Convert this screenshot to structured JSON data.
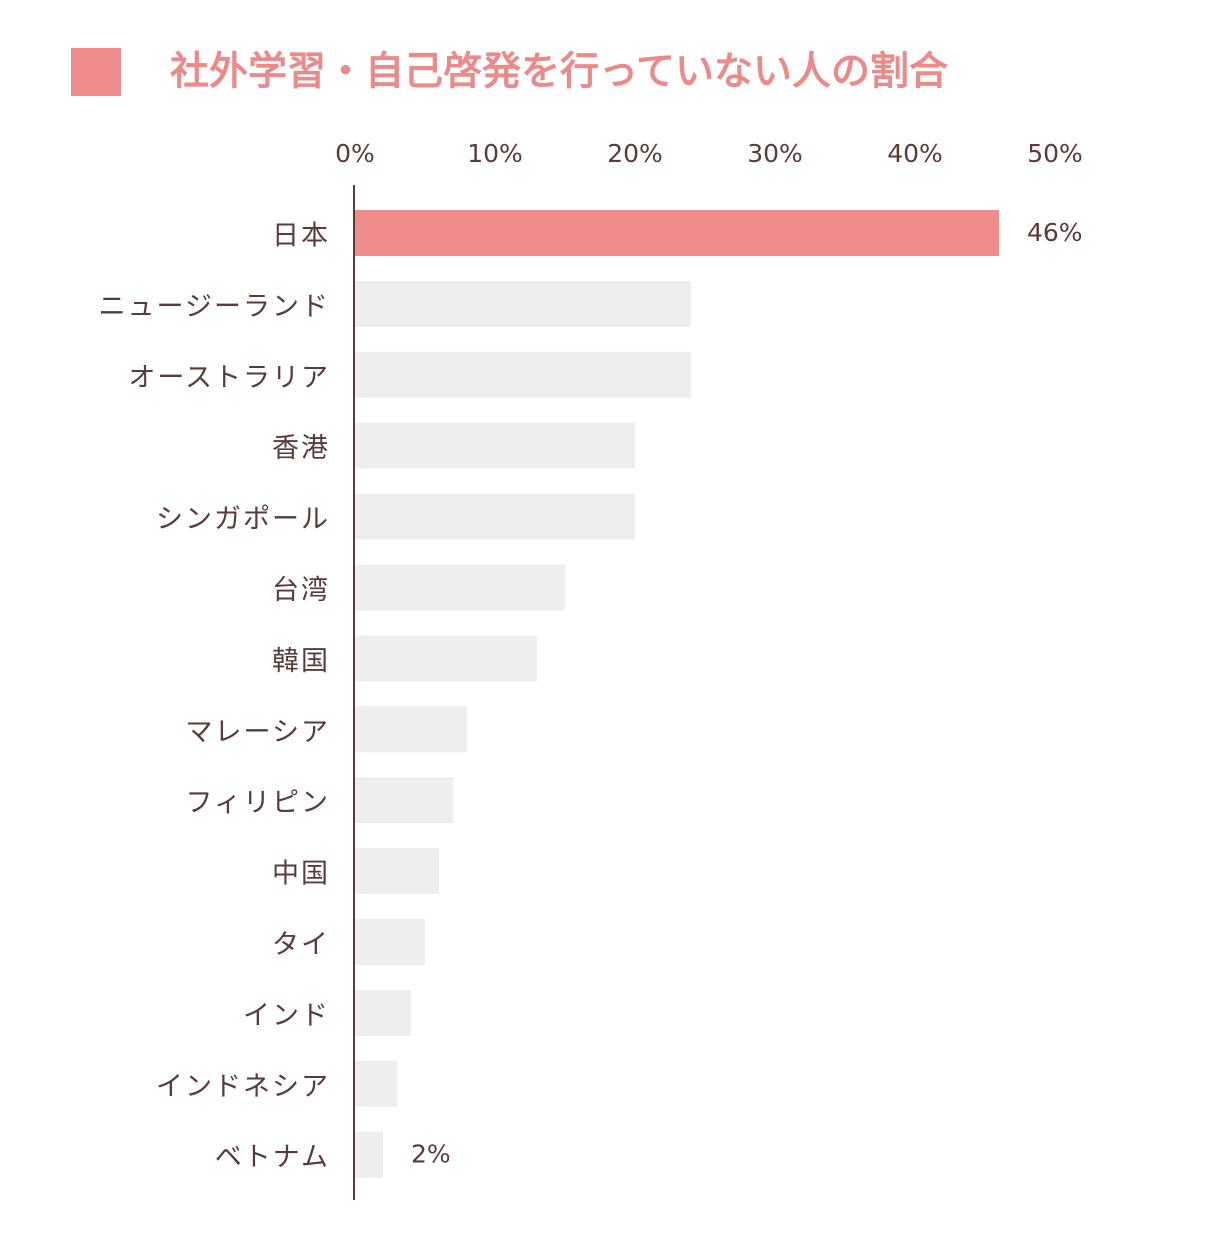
{
  "chart_data": {
    "type": "bar",
    "orientation": "horizontal",
    "title": "社外学習・自己啓発を行っていない人の割合",
    "categories": [
      "日本",
      "ニュージーランド",
      "オーストラリア",
      "香港",
      "シンガポール",
      "台湾",
      "韓国",
      "マレーシア",
      "フィリピン",
      "中国",
      "タイ",
      "インド",
      "インドネシア",
      "ベトナム"
    ],
    "values": [
      46,
      24,
      24,
      20,
      20,
      15,
      13,
      8,
      7,
      6,
      5,
      4,
      3,
      2
    ],
    "value_labels": [
      "46%",
      null,
      null,
      null,
      null,
      null,
      null,
      null,
      null,
      null,
      null,
      null,
      null,
      "2%"
    ],
    "colors": [
      "#ef8c8c",
      "#eeeeee",
      "#eeeeee",
      "#eeeeee",
      "#eeeeee",
      "#eeeeee",
      "#eeeeee",
      "#eeeeee",
      "#eeeeee",
      "#eeeeee",
      "#eeeeee",
      "#eeeeee",
      "#eeeeee",
      "#eeeeee"
    ],
    "xlim": [
      0,
      50
    ],
    "xticks": [
      {
        "value": 0,
        "label": "0%"
      },
      {
        "value": 10,
        "label": "10%"
      },
      {
        "value": 20,
        "label": "20%"
      },
      {
        "value": 30,
        "label": "30%"
      },
      {
        "value": 40,
        "label": "40%"
      },
      {
        "value": 50,
        "label": "50%"
      }
    ]
  }
}
